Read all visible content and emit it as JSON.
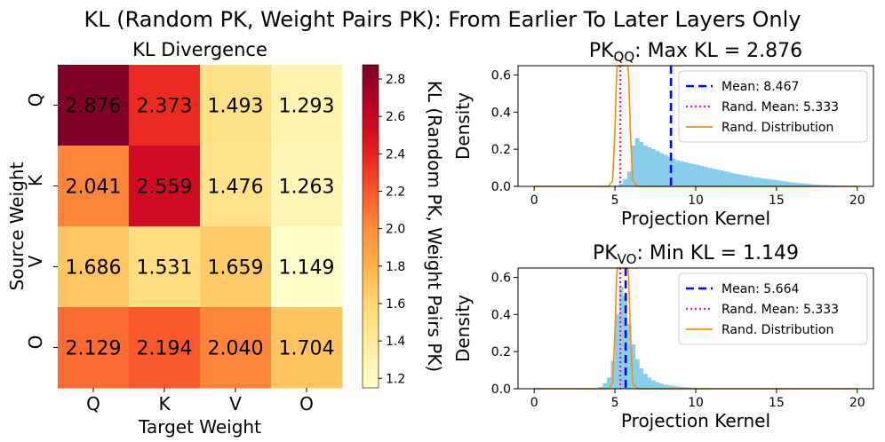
{
  "suptitle": "KL (Random PK, Weight Pairs PK): From Earlier To Later Layers Only",
  "chart_data": [
    {
      "type": "heatmap",
      "title": "KL Divergence",
      "xlabel": "Target Weight",
      "ylabel": "Source Weight",
      "rows": [
        "Q",
        "K",
        "V",
        "O"
      ],
      "cols": [
        "Q",
        "K",
        "V",
        "O"
      ],
      "cells": [
        {
          "value": 2.876,
          "label": "2.876"
        },
        {
          "value": 2.373,
          "label": "2.373"
        },
        {
          "value": 1.493,
          "label": "1.493"
        },
        {
          "value": 1.293,
          "label": "1.293"
        },
        {
          "value": 2.041,
          "label": "2.041"
        },
        {
          "value": 2.559,
          "label": "2.559"
        },
        {
          "value": 1.476,
          "label": "1.476"
        },
        {
          "value": 1.263,
          "label": "1.263"
        },
        {
          "value": 1.686,
          "label": "1.686"
        },
        {
          "value": 1.531,
          "label": "1.531"
        },
        {
          "value": 1.659,
          "label": "1.659"
        },
        {
          "value": 1.149,
          "label": "1.149"
        },
        {
          "value": 2.129,
          "label": "2.129"
        },
        {
          "value": 2.194,
          "label": "2.194"
        },
        {
          "value": 2.04,
          "label": "2.040"
        },
        {
          "value": 1.704,
          "label": "1.704"
        }
      ],
      "colorbar": {
        "label": "KL (Random PK, Weight Pairs PK)",
        "vmin": 1.149,
        "vmax": 2.876,
        "ticks": [
          {
            "value": 1.2,
            "label": "1.2"
          },
          {
            "value": 1.4,
            "label": "1.4"
          },
          {
            "value": 1.6,
            "label": "1.6"
          },
          {
            "value": 1.8,
            "label": "1.8"
          },
          {
            "value": 2.0,
            "label": "2.0"
          },
          {
            "value": 2.2,
            "label": "2.2"
          },
          {
            "value": 2.4,
            "label": "2.4"
          },
          {
            "value": 2.6,
            "label": "2.6"
          },
          {
            "value": 2.8,
            "label": "2.8"
          }
        ],
        "colormap": "YlOrRd"
      }
    },
    {
      "type": "histogram",
      "title_main": "PK",
      "title_sub": "QQ",
      "title_rest": ": Max KL = 2.876",
      "xlabel": "Projection Kernel",
      "ylabel": "Density",
      "xlim": [
        -1,
        21
      ],
      "ylim": [
        0,
        0.65
      ],
      "xticks": [
        {
          "value": 0,
          "label": "0"
        },
        {
          "value": 5,
          "label": "5"
        },
        {
          "value": 10,
          "label": "10"
        },
        {
          "value": 15,
          "label": "15"
        },
        {
          "value": 20,
          "label": "20"
        }
      ],
      "yticks": [
        {
          "value": 0,
          "label": "0.0"
        },
        {
          "value": 0.2,
          "label": "0.2"
        },
        {
          "value": 0.4,
          "label": "0.4"
        },
        {
          "value": 0.6,
          "label": "0.6"
        }
      ],
      "hist": {
        "bin_start": 0,
        "bin_width": 0.25,
        "densities": [
          0,
          0,
          0,
          0,
          0,
          0,
          0,
          0,
          0,
          0,
          0,
          0,
          0,
          0,
          0,
          0,
          0,
          0,
          0,
          0,
          0.005,
          0.015,
          0.04,
          0.08,
          0.22,
          0.26,
          0.24,
          0.22,
          0.21,
          0.2,
          0.19,
          0.18,
          0.17,
          0.16,
          0.15,
          0.14,
          0.135,
          0.13,
          0.125,
          0.12,
          0.115,
          0.11,
          0.105,
          0.1,
          0.095,
          0.09,
          0.085,
          0.08,
          0.075,
          0.07,
          0.066,
          0.062,
          0.058,
          0.054,
          0.05,
          0.047,
          0.044,
          0.041,
          0.038,
          0.035,
          0.032,
          0.029,
          0.026,
          0.023,
          0.02,
          0.018,
          0.016,
          0.014,
          0.012,
          0.01,
          0.009,
          0.008,
          0.007,
          0.006,
          0.005,
          0.004,
          0.003,
          0.002,
          0.002,
          0.001
        ],
        "color": "#87ceeb"
      },
      "rand_curve": {
        "points": [
          [
            0,
            0
          ],
          [
            4.6,
            0
          ],
          [
            4.85,
            0.03
          ],
          [
            5.0,
            0.3
          ],
          [
            5.1,
            0.6
          ],
          [
            5.15,
            0.65
          ]
        ],
        "mirror_points": [
          [
            5.8,
            0.65
          ],
          [
            5.85,
            0.6
          ],
          [
            5.95,
            0.3
          ],
          [
            6.1,
            0.03
          ],
          [
            6.4,
            0
          ],
          [
            20,
            0
          ]
        ],
        "color": "#ff8c00"
      },
      "mean_line": {
        "value": 8.467,
        "color": "#0000ff"
      },
      "rand_mean_line": {
        "value": 5.333,
        "color": "#ff1493"
      },
      "legend": [
        {
          "key": "mean",
          "label": "Mean: 8.467"
        },
        {
          "key": "rand_mean",
          "label": "Rand. Mean: 5.333"
        },
        {
          "key": "rand_dist",
          "label": "Rand. Distribution"
        }
      ]
    },
    {
      "type": "histogram",
      "title_main": "PK",
      "title_sub": "VO",
      "title_rest": ": Min KL = 1.149",
      "xlabel": "Projection Kernel",
      "ylabel": "Density",
      "xlim": [
        -1,
        21
      ],
      "ylim": [
        0,
        0.65
      ],
      "xticks": [
        {
          "value": 0,
          "label": "0"
        },
        {
          "value": 5,
          "label": "5"
        },
        {
          "value": 10,
          "label": "10"
        },
        {
          "value": 15,
          "label": "15"
        },
        {
          "value": 20,
          "label": "20"
        }
      ],
      "yticks": [
        {
          "value": 0,
          "label": "0.0"
        },
        {
          "value": 0.2,
          "label": "0.2"
        },
        {
          "value": 0.4,
          "label": "0.4"
        },
        {
          "value": 0.6,
          "label": "0.6"
        }
      ],
      "hist": {
        "bin_start": 0,
        "bin_width": 0.25,
        "densities": [
          0,
          0,
          0,
          0,
          0,
          0,
          0,
          0,
          0,
          0,
          0,
          0,
          0,
          0,
          0,
          0.005,
          0.01,
          0.03,
          0.06,
          0.15,
          0.4,
          0.55,
          0.5,
          0.35,
          0.24,
          0.16,
          0.11,
          0.08,
          0.06,
          0.045,
          0.035,
          0.028,
          0.022,
          0.018,
          0.015,
          0.012,
          0.01,
          0.008,
          0.007,
          0.006,
          0.005,
          0.004,
          0.003,
          0.002,
          0.001
        ],
        "color": "#87ceeb"
      },
      "rand_curve": {
        "points": [
          [
            0,
            0
          ],
          [
            4.6,
            0
          ],
          [
            4.85,
            0.03
          ],
          [
            5.0,
            0.3
          ],
          [
            5.1,
            0.6
          ],
          [
            5.15,
            0.65
          ]
        ],
        "mirror_points": [
          [
            5.8,
            0.65
          ],
          [
            5.85,
            0.6
          ],
          [
            5.95,
            0.3
          ],
          [
            6.1,
            0.03
          ],
          [
            6.4,
            0
          ],
          [
            20,
            0
          ]
        ],
        "color": "#ff8c00"
      },
      "mean_line": {
        "value": 5.664,
        "color": "#0000ff"
      },
      "rand_mean_line": {
        "value": 5.333,
        "color": "#ff1493"
      },
      "legend": [
        {
          "key": "mean",
          "label": "Mean: 5.664"
        },
        {
          "key": "rand_mean",
          "label": "Rand. Mean: 5.333"
        },
        {
          "key": "rand_dist",
          "label": "Rand. Distribution"
        }
      ]
    }
  ]
}
